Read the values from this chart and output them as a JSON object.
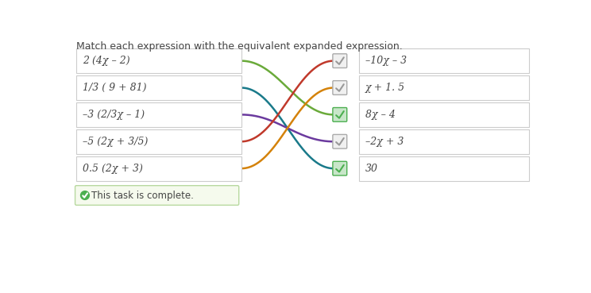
{
  "title": "Match each expression with the equivalent expanded expression.",
  "left_labels": [
    "2 (4χ – 2)",
    "1/3 ( 9 + 81)",
    "–3 (2/3χ – 1)",
    "–5 (2χ + 3/5)",
    "0.5 (2χ + 3)"
  ],
  "right_labels": [
    "–10χ – 3",
    "χ + 1. 5",
    "8χ – 4",
    "–2χ + 3",
    "30"
  ],
  "connections": [
    {
      "from": 0,
      "to": 2,
      "color": "#6aaa3a",
      "lw": 1.8
    },
    {
      "from": 1,
      "to": 4,
      "color": "#1a7a8a",
      "lw": 1.8
    },
    {
      "from": 2,
      "to": 3,
      "color": "#6b3a9e",
      "lw": 1.8
    },
    {
      "from": 3,
      "to": 0,
      "color": "#c0392b",
      "lw": 1.8
    },
    {
      "from": 4,
      "to": 1,
      "color": "#d4820a",
      "lw": 1.8
    }
  ],
  "right_checked": [
    false,
    false,
    true,
    false,
    true
  ],
  "left_box_color": "#ffffff",
  "box_border_color": "#cccccc",
  "check_gray_border": "#aaaaaa",
  "check_gray_bg": "#f0f0f0",
  "check_green_border": "#4caf50",
  "check_green_bg": "#c8e6c9",
  "check_green_color": "#4caf50",
  "check_gray_color": "#999999",
  "task_complete_text": "This task is complete.",
  "task_bg": "#f5faed",
  "task_border": "#b8d9a0",
  "task_icon_color": "#4caf50",
  "bg_color": "#ffffff",
  "text_color": "#444444",
  "font_size": 9,
  "title_font_size": 9
}
